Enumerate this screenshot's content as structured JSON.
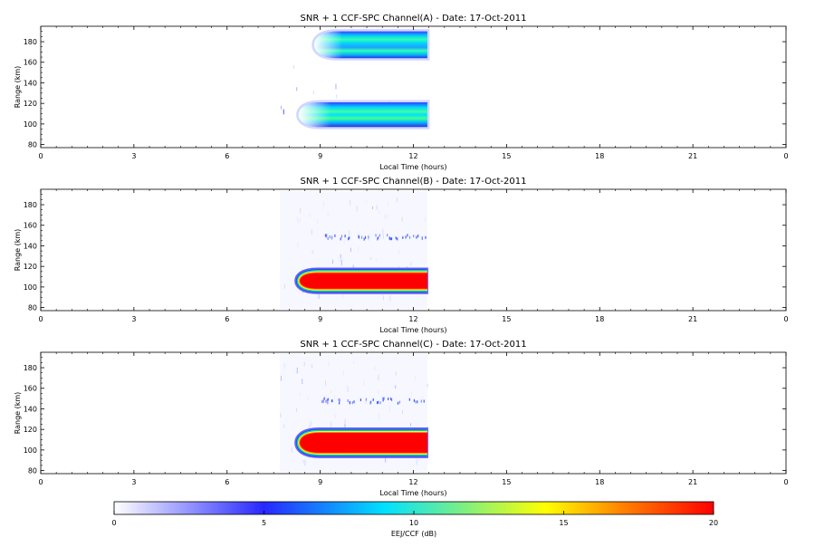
{
  "panels": [
    {
      "id": "A",
      "title": "SNR + 1 CCF-SPC Channel(A) - Date: 17-Oct-2011",
      "ylabel": "Range (km)",
      "xlabel": "Local Time (hours)"
    },
    {
      "id": "B",
      "title": "SNR + 1 CCF-SPC Channel(B) - Date: 17-Oct-2011",
      "ylabel": "Range (km)",
      "xlabel": "Local Time (hours)"
    },
    {
      "id": "C",
      "title": "SNR + 1 CCF-SPC Channel(C) - Date: 17-Oct-2011",
      "ylabel": "Range (km)",
      "xlabel": "Local Time (hours)"
    }
  ],
  "colorbar": {
    "label": "EEJ/CCF (dB)",
    "ticks": [
      "0",
      "5",
      "10",
      "15",
      "20"
    ],
    "range": [
      0,
      20
    ],
    "colors": [
      "#ffffff",
      "#2828ff",
      "#00e0ff",
      "#ffff00",
      "#ff8000",
      "#ff0000"
    ]
  },
  "chart_data": [
    {
      "type": "heatmap",
      "title": "SNR + 1 CCF-SPC Channel(A) - Date: 17-Oct-2011",
      "xlabel": "Local Time (hours)",
      "ylabel": "Range (km)",
      "xlim": [
        0,
        24
      ],
      "ylim": [
        77,
        195
      ],
      "x_ticks": [
        "0",
        "3",
        "6",
        "9",
        "12",
        "15",
        "18",
        "21",
        "0"
      ],
      "y_ticks": [
        "80",
        "100",
        "120",
        "140",
        "160",
        "180"
      ],
      "echoes": [
        {
          "t_start": 8.8,
          "t_end": 12.45,
          "range_low": 164,
          "range_high": 190,
          "peak_db": 9
        },
        {
          "t_start": 8.3,
          "t_end": 12.45,
          "range_low": 97,
          "range_high": 121,
          "peak_db": 9
        }
      ]
    },
    {
      "type": "heatmap",
      "title": "SNR + 1 CCF-SPC Channel(B) - Date: 17-Oct-2011",
      "xlabel": "Local Time (hours)",
      "ylabel": "Range (km)",
      "xlim": [
        0,
        24
      ],
      "ylim": [
        77,
        195
      ],
      "x_ticks": [
        "0",
        "3",
        "6",
        "9",
        "12",
        "15",
        "18",
        "21",
        "0"
      ],
      "y_ticks": [
        "80",
        "100",
        "120",
        "140",
        "160",
        "180"
      ],
      "echoes": [
        {
          "t_start": 8.2,
          "t_end": 12.45,
          "range_low": 94,
          "range_high": 118,
          "peak_db": 20
        },
        {
          "t_start": 9.0,
          "t_end": 12.4,
          "range_low": 146,
          "range_high": 150,
          "peak_db": 2
        }
      ]
    },
    {
      "type": "heatmap",
      "title": "SNR + 1 CCF-SPC Channel(C) - Date: 17-Oct-2011",
      "xlabel": "Local Time (hours)",
      "ylabel": "Range (km)",
      "xlim": [
        0,
        24
      ],
      "ylim": [
        77,
        195
      ],
      "x_ticks": [
        "0",
        "3",
        "6",
        "9",
        "12",
        "15",
        "18",
        "21",
        "0"
      ],
      "y_ticks": [
        "80",
        "100",
        "120",
        "140",
        "160",
        "180"
      ],
      "echoes": [
        {
          "t_start": 8.2,
          "t_end": 12.45,
          "range_low": 93,
          "range_high": 121,
          "peak_db": 20
        },
        {
          "t_start": 9.0,
          "t_end": 12.4,
          "range_low": 145,
          "range_high": 150,
          "peak_db": 2
        }
      ]
    }
  ]
}
